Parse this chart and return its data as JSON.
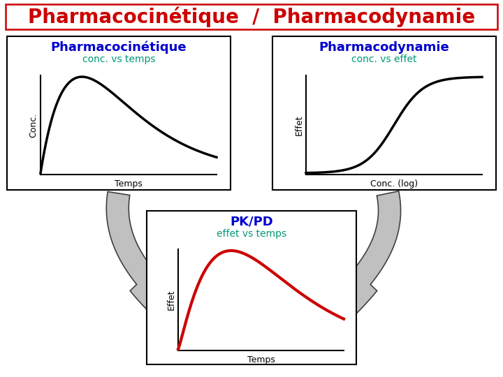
{
  "title": "Pharmacocinétique  /  Pharmacodynamie",
  "title_color": "#cc0000",
  "title_fontsize": 20,
  "bg_color": "#ffffff",
  "pk_title": "Pharmacocinétique",
  "pk_subtitle": "conc. vs temps",
  "pk_xlabel": "Temps",
  "pk_ylabel": "Conc.",
  "pk_title_color": "#0000cc",
  "pk_subtitle_color": "#009977",
  "pd_title": "Pharmacodynamie",
  "pd_subtitle": "conc. vs effet",
  "pd_xlabel": "Conc. (log)",
  "pd_ylabel": "Effet",
  "pd_title_color": "#0000cc",
  "pd_subtitle_color": "#009977",
  "pkpd_title": "PK/PD",
  "pkpd_subtitle": "effet vs temps",
  "pkpd_xlabel": "Temps",
  "pkpd_ylabel": "Effet",
  "pkpd_title_color": "#0000cc",
  "pkpd_subtitle_color": "#009977",
  "pkpd_curve_color": "#cc0000",
  "curve_color": "#000000",
  "curve_lw": 2.5,
  "axis_label_fontsize": 9,
  "arrow_fill": "#c0c0c0",
  "arrow_edge": "#404040"
}
